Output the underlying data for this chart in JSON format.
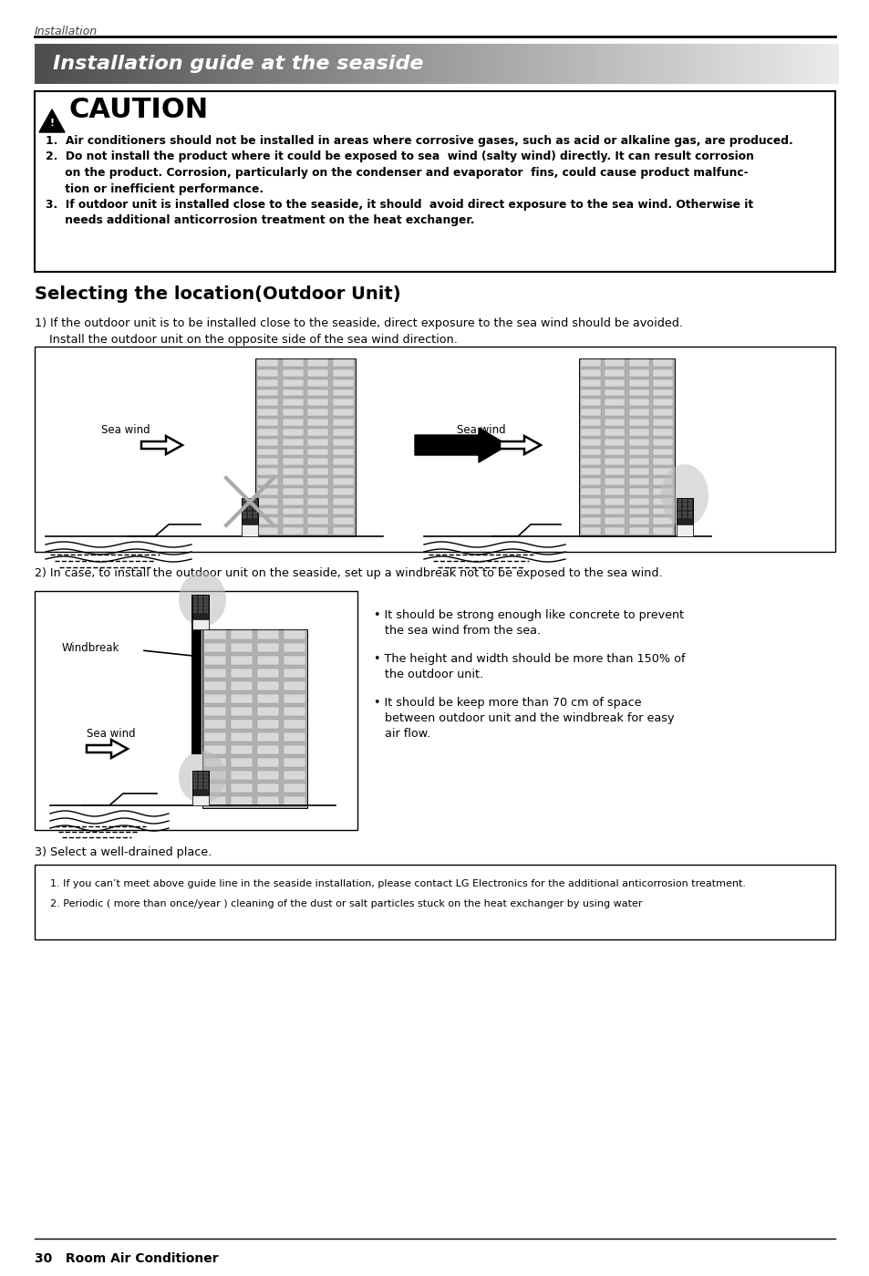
{
  "page_title": "Installation",
  "section_title": "Installation guide at the seaside",
  "caution_line1": "1.  Air conditioners should not be installed in areas where corrosive gases, such as acid or alkaline gas, are produced.",
  "caution_line2a": "2.  Do not install the product where it could be exposed to sea  wind (salty wind) directly. It can result corrosion",
  "caution_line2b": "     on the product. Corrosion, particularly on the condenser and evaporator  fins, could cause product malfunc-",
  "caution_line2c": "     tion or inefficient performance.",
  "caution_line3a": "3.  If outdoor unit is installed close to the seaside, it should  avoid direct exposure to the sea wind. Otherwise it",
  "caution_line3b": "     needs additional anticorrosion treatment on the heat exchanger.",
  "section2_title": "Selecting the location(Outdoor Unit)",
  "para1a": "1) If the outdoor unit is to be installed close to the seaside, direct exposure to the sea wind should be avoided.",
  "para1b": "    Install the outdoor unit on the opposite side of the sea wind direction.",
  "para2": "2) In case, to install the outdoor unit on the seaside, set up a windbreak not to be exposed to the sea wind.",
  "bullet1a": " It should be strong enough like concrete to prevent",
  "bullet1b": "   the sea wind from the sea.",
  "bullet2a": " The height and width should be more than 150% of",
  "bullet2b": "   the outdoor unit.",
  "bullet3a": " It should be keep more than 70 cm of space",
  "bullet3b": "   between outdoor unit and the windbreak for easy",
  "bullet3c": "   air flow.",
  "para3": "3) Select a well-drained place.",
  "note1": "1. If you can’t meet above guide line in the seaside installation, please contact LG Electronics for the additional anticorrosion treatment.",
  "note2": "2. Periodic ( more than once/year ) cleaning of the dust or salt particles stuck on the heat exchanger by using water",
  "footer": "30   Room Air Conditioner",
  "bg_color": "#ffffff",
  "sea_wind_left1": "Sea wind",
  "sea_wind_right1": "Sea wind",
  "windbreak_label": "Windbreak",
  "sea_wind_diag2": "Sea wind"
}
